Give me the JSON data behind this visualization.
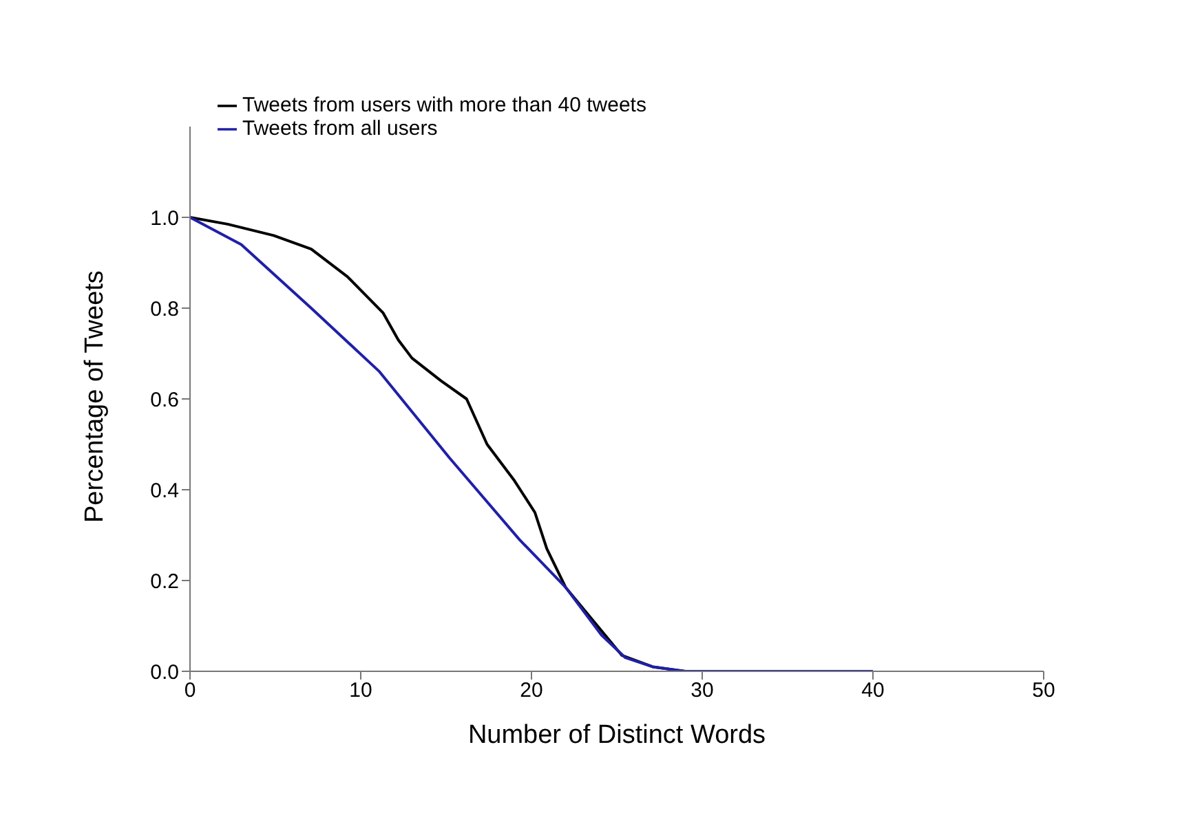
{
  "chart_data": {
    "type": "line",
    "xlabel": "Number of Distinct Words",
    "ylabel": "Percentage of Tweets",
    "xlim": [
      0,
      50
    ],
    "xticks": [
      0,
      10,
      20,
      30,
      40,
      50
    ],
    "ylim": [
      0,
      1.2
    ],
    "yticks": [
      {
        "value": 0,
        "label": "0.0"
      },
      {
        "value": 0.2,
        "label": "0.2"
      },
      {
        "value": 0.4,
        "label": "0.4"
      },
      {
        "value": 0.6,
        "label": "0.6"
      },
      {
        "value": 0.8,
        "label": "0.8"
      },
      {
        "value": 1,
        "label": "1.0"
      }
    ],
    "legend": "top left",
    "grid": false,
    "marker": "none",
    "line_style": "solid",
    "series": [
      {
        "name": "Tweets from users with more than 40 tweets",
        "color": "#000000",
        "x": [
          0,
          2.2,
          4.9,
          7.1,
          9.2,
          11.3,
          12.2,
          13,
          14.7,
          16.2,
          17.4,
          19,
          20.2,
          20.9,
          22,
          25.3,
          27.1,
          29,
          40
        ],
        "values": [
          1,
          0.985,
          0.96,
          0.93,
          0.87,
          0.79,
          0.73,
          0.69,
          0.64,
          0.6,
          0.5,
          0.42,
          0.35,
          0.27,
          0.185,
          0.035,
          0.01,
          0,
          0
        ]
      },
      {
        "name": "Tweets from all users",
        "color": "#2020a8",
        "x": [
          0,
          3,
          7.1,
          11.1,
          15.2,
          19.3,
          22,
          24.1,
          25.5,
          27.1,
          29,
          40
        ],
        "values": [
          1,
          0.94,
          0.8,
          0.66,
          0.47,
          0.29,
          0.185,
          0.08,
          0.03,
          0.01,
          0,
          0
        ]
      }
    ]
  }
}
